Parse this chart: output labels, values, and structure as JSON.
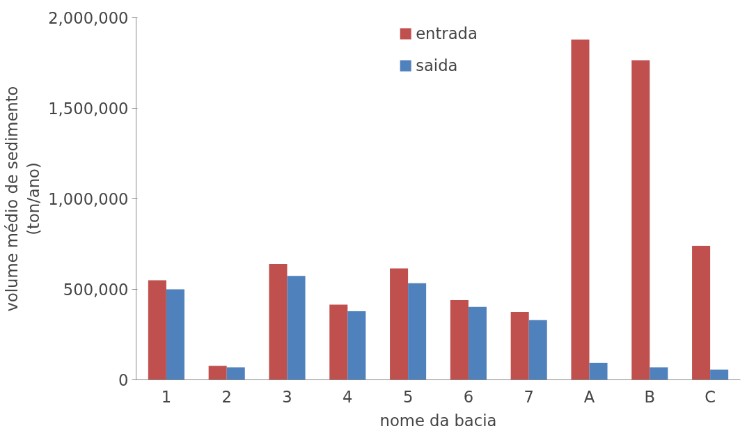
{
  "chart_data": {
    "type": "bar",
    "xlabel": "nome da bacia",
    "ylabel": "volume médio de sedimento\n(ton/ano)",
    "categories": [
      "1",
      "2",
      "3",
      "4",
      "5",
      "6",
      "7",
      "A",
      "B",
      "C"
    ],
    "series": [
      {
        "name": "entrada",
        "color": "#c0504d",
        "values": [
          550000,
          77000,
          640000,
          415000,
          615000,
          440000,
          375000,
          1880000,
          1765000,
          740000
        ]
      },
      {
        "name": "saida",
        "color": "#4f81bd",
        "values": [
          500000,
          69000,
          574000,
          379000,
          534000,
          403000,
          330000,
          94000,
          69000,
          57000
        ]
      }
    ],
    "ylim": [
      0,
      2000000
    ],
    "yticks": [
      {
        "value": 0,
        "label": "0"
      },
      {
        "value": 500000,
        "label": "500,000"
      },
      {
        "value": 1000000,
        "label": "1,000,000"
      },
      {
        "value": 1500000,
        "label": "1,500,000"
      },
      {
        "value": 2000000,
        "label": "2,000,000"
      }
    ],
    "grid": false,
    "legend": "top"
  }
}
